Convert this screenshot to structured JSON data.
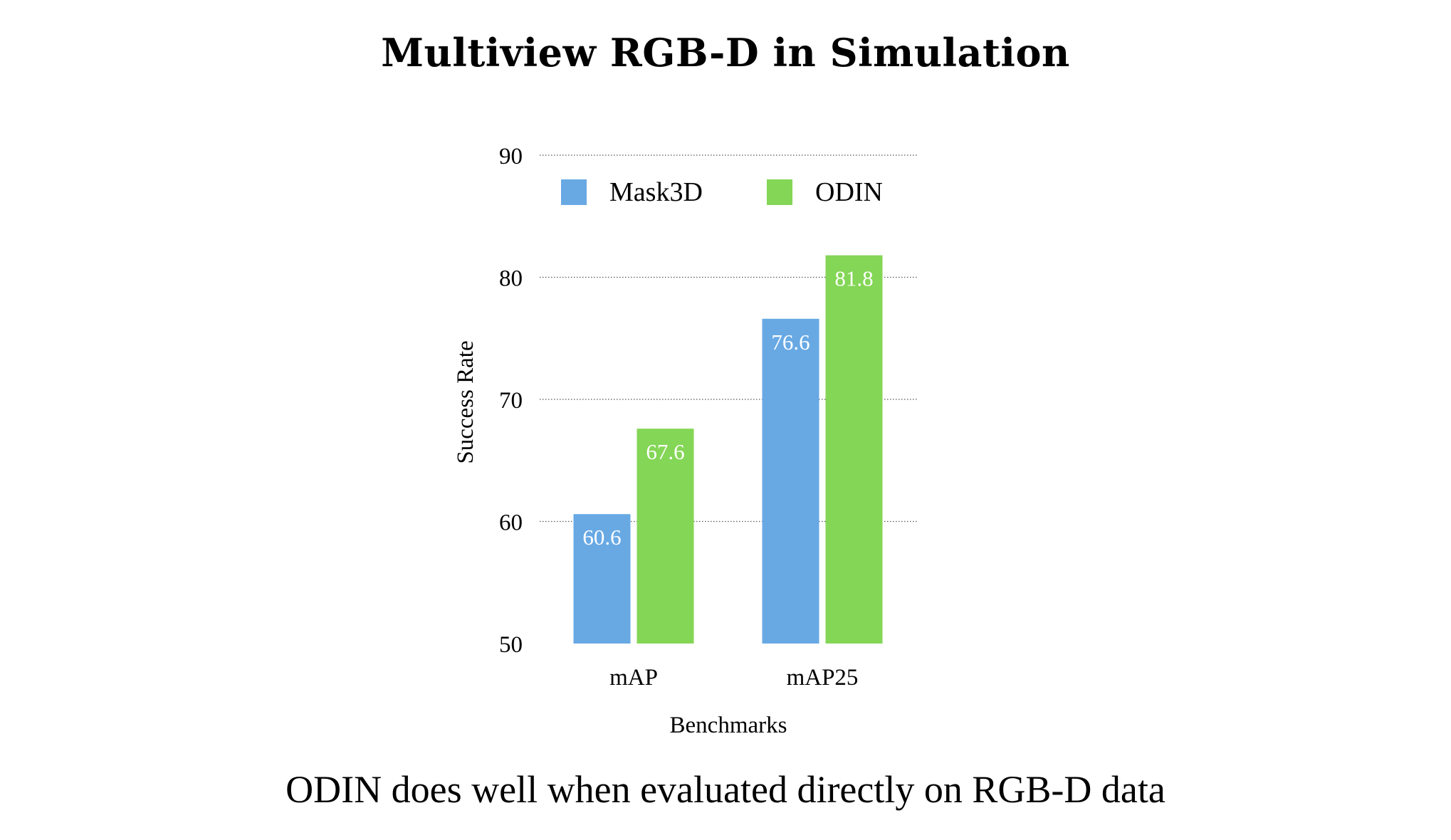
{
  "chart_data": {
    "type": "bar",
    "title": "Multiview RGB-D in Simulation",
    "caption": "ODIN does well when evaluated directly on RGB-D data",
    "xlabel": "Benchmarks",
    "ylabel": "Success Rate",
    "categories": [
      "mAP",
      "mAP25"
    ],
    "series": [
      {
        "name": "Mask3D",
        "values": [
          60.6,
          76.6
        ],
        "labels": [
          "60.6",
          "76.6"
        ],
        "color": "#68a9e4"
      },
      {
        "name": "ODIN",
        "values": [
          67.6,
          81.8
        ],
        "labels": [
          "67.6",
          "81.8"
        ],
        "color": "#84d656"
      }
    ],
    "ylim": [
      50,
      90
    ],
    "yticks": [
      "50",
      "60",
      "70",
      "80",
      "90"
    ],
    "grid": true,
    "grid_style": "dotted",
    "legend_position": "top"
  }
}
